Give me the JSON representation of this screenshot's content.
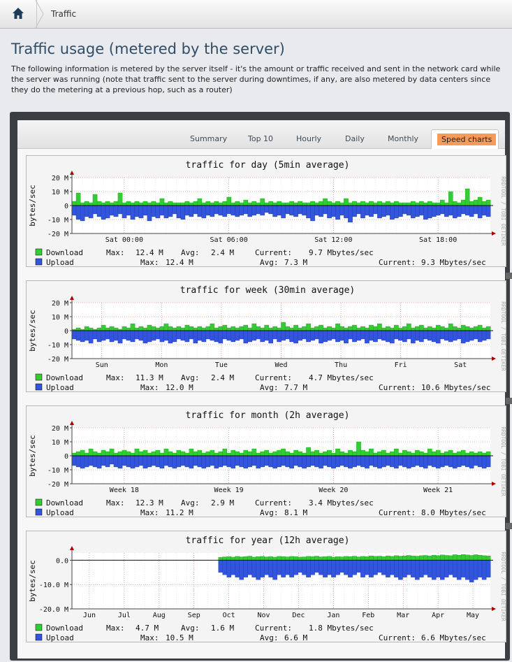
{
  "breadcrumb": {
    "home_icon": "home-icon",
    "current": "Traffic"
  },
  "page": {
    "title": "Traffic usage (metered by the server)",
    "description": "The following information is metered by the server itself - it's the amount or traffic received and sent in the network card while the server was running (note that traffic sent to the server during downtimes, if any, are also metered by data centers since they do the metering at a previous hop, such as a router)"
  },
  "tabs": [
    {
      "label": "Summary",
      "active": false
    },
    {
      "label": "Top 10",
      "active": false
    },
    {
      "label": "Hourly",
      "active": false
    },
    {
      "label": "Daily",
      "active": false
    },
    {
      "label": "Monthly",
      "active": false
    },
    {
      "label": "Speed charts",
      "active": true
    }
  ],
  "colors": {
    "download": "#33cc33",
    "upload": "#3355dd",
    "accent_tab": "#f79b5b"
  },
  "chart_data": [
    {
      "type": "area",
      "title": "traffic for day (5min average)",
      "ylabel": "bytes/sec",
      "watermark": "RRDTOOL / TOBI OETIKER",
      "yticks": [
        "20 M",
        "10 M",
        "0",
        "-10 M",
        "-20 M"
      ],
      "ylim": [
        -20,
        20
      ],
      "xticks": [
        "Sat 00:00",
        "Sat 06:00",
        "Sat 12:00",
        "Sat 18:00"
      ],
      "series": [
        {
          "name": "Download",
          "max": "12.4 M",
          "avg": "2.4 M",
          "current": "9.7 Mbytes/sec",
          "values": [
            3,
            9,
            2,
            3,
            2,
            8,
            3,
            2,
            3,
            2,
            3,
            9,
            2,
            3,
            2,
            3,
            2,
            3,
            2,
            3,
            2,
            5,
            2,
            3,
            2,
            2,
            2,
            3,
            2,
            3,
            5,
            2,
            3,
            2,
            3,
            2,
            3,
            6,
            2,
            3,
            2,
            4,
            2,
            3,
            2,
            5,
            2,
            3,
            2,
            3,
            2,
            2,
            3,
            2,
            3,
            2,
            2,
            3,
            2,
            3,
            5,
            3,
            2,
            3,
            2,
            5,
            2,
            3,
            2,
            3,
            2,
            3,
            2,
            3,
            2,
            3,
            2,
            3,
            2,
            2,
            2,
            3,
            2,
            3,
            2,
            3,
            2,
            2,
            4,
            2,
            10,
            3,
            2,
            4,
            12,
            3,
            4,
            6,
            3,
            4
          ]
        },
        {
          "name": "Upload",
          "max": "12.4 M",
          "avg": "7.3 M",
          "current": "9.3 Mbytes/sec",
          "values": [
            -7,
            -10,
            -11,
            -8,
            -9,
            -6,
            -8,
            -10,
            -9,
            -7,
            -8,
            -6,
            -9,
            -7,
            -10,
            -8,
            -9,
            -7,
            -11,
            -8,
            -9,
            -7,
            -9,
            -8,
            -6,
            -9,
            -10,
            -7,
            -8,
            -6,
            -8,
            -9,
            -7,
            -8,
            -6,
            -7,
            -8,
            -6,
            -7,
            -8,
            -7,
            -6,
            -8,
            -7,
            -6,
            -7,
            -5,
            -6,
            -8,
            -7,
            -9,
            -6,
            -7,
            -8,
            -6,
            -7,
            -9,
            -11,
            -7,
            -8,
            -6,
            -9,
            -8,
            -10,
            -7,
            -9,
            -12,
            -8,
            -6,
            -9,
            -7,
            -8,
            -6,
            -9,
            -8,
            -7,
            -10,
            -9,
            -8,
            -6,
            -7,
            -9,
            -8,
            -7,
            -10,
            -9,
            -8,
            -7,
            -6,
            -8,
            -7,
            -9,
            -8,
            -6,
            -7,
            -8,
            -6,
            -9,
            -7,
            -8
          ]
        }
      ]
    },
    {
      "type": "area",
      "title": "traffic for week (30min average)",
      "ylabel": "bytes/sec",
      "watermark": "RRDTOOL / TOBI OETIKER",
      "yticks": [
        "20 M",
        "10 M",
        "0",
        "-10 M",
        "-20 M"
      ],
      "ylim": [
        -20,
        20
      ],
      "xticks": [
        "Sun",
        "Mon",
        "Tue",
        "Wed",
        "Thu",
        "Fri",
        "Sat"
      ],
      "series": [
        {
          "name": "Download",
          "max": "11.3 M",
          "avg": "2.4 M",
          "current": "4.7 Mbytes/sec",
          "values": [
            1,
            2,
            1,
            3,
            2,
            1,
            2,
            4,
            2,
            3,
            2,
            1,
            3,
            2,
            5,
            2,
            3,
            2,
            4,
            3,
            2,
            3,
            5,
            3,
            2,
            3,
            2,
            4,
            3,
            2,
            3,
            2,
            3,
            5,
            2,
            3,
            4,
            2,
            3,
            2,
            3,
            4,
            2,
            5,
            3,
            2,
            4,
            2,
            3,
            2,
            6,
            3,
            2,
            4,
            2,
            3,
            5,
            2,
            3,
            4,
            2,
            3,
            2,
            5,
            3,
            2,
            3,
            4,
            2,
            3,
            2,
            4,
            3,
            5,
            2,
            3,
            2,
            4,
            2,
            3,
            5,
            2,
            3,
            4,
            2,
            3,
            2,
            4,
            3,
            2,
            5,
            3,
            2,
            4,
            3,
            2,
            3,
            4,
            2,
            3
          ]
        },
        {
          "name": "Upload",
          "max": "12.0 M",
          "avg": "7.7 M",
          "current": "10.6 Mbytes/sec",
          "values": [
            -6,
            -7,
            -8,
            -7,
            -9,
            -6,
            -8,
            -7,
            -6,
            -8,
            -7,
            -9,
            -6,
            -7,
            -8,
            -6,
            -7,
            -9,
            -8,
            -7,
            -6,
            -8,
            -7,
            -9,
            -8,
            -6,
            -7,
            -8,
            -6,
            -9,
            -7,
            -8,
            -6,
            -7,
            -8,
            -9,
            -6,
            -7,
            -8,
            -7,
            -6,
            -9,
            -8,
            -7,
            -6,
            -8,
            -7,
            -9,
            -6,
            -8,
            -7,
            -6,
            -8,
            -9,
            -7,
            -6,
            -8,
            -7,
            -6,
            -9,
            -8,
            -7,
            -6,
            -8,
            -7,
            -9,
            -6,
            -8,
            -7,
            -6,
            -9,
            -7,
            -8,
            -6,
            -7,
            -8,
            -9,
            -6,
            -7,
            -8,
            -6,
            -9,
            -7,
            -8,
            -6,
            -7,
            -8,
            -9,
            -6,
            -7,
            -8,
            -7,
            -6,
            -9,
            -8,
            -7,
            -6,
            -8,
            -7,
            -6
          ]
        }
      ]
    },
    {
      "type": "area",
      "title": "traffic for month (2h average)",
      "ylabel": "bytes/sec",
      "watermark": "RRDTOOL / TOBI OETIKER",
      "yticks": [
        "20 M",
        "10 M",
        "0",
        "-10 M",
        "-20 M"
      ],
      "ylim": [
        -20,
        20
      ],
      "xticks": [
        "Week 18",
        "Week 19",
        "Week 20",
        "Week 21"
      ],
      "series": [
        {
          "name": "Download",
          "max": "12.3 M",
          "avg": "2.9 M",
          "current": "3.4 Mbytes/sec",
          "values": [
            2,
            3,
            4,
            2,
            5,
            3,
            2,
            4,
            3,
            5,
            2,
            3,
            4,
            3,
            2,
            5,
            3,
            4,
            2,
            3,
            4,
            2,
            5,
            3,
            2,
            4,
            3,
            2,
            5,
            3,
            4,
            2,
            3,
            4,
            2,
            3,
            5,
            2,
            4,
            3,
            2,
            4,
            3,
            5,
            2,
            3,
            4,
            2,
            3,
            4,
            5,
            3,
            2,
            4,
            3,
            2,
            6,
            3,
            4,
            2,
            3,
            4,
            2,
            5,
            3,
            2,
            4,
            3,
            10,
            4,
            3,
            5,
            2,
            3,
            4,
            2,
            3,
            5,
            2,
            4,
            3,
            2,
            4,
            3,
            2,
            5,
            3,
            4,
            2,
            3,
            4,
            2,
            3,
            4,
            2,
            3,
            2,
            3,
            2,
            3
          ]
        },
        {
          "name": "Upload",
          "max": "11.2 M",
          "avg": "8.1 M",
          "current": "8.0 Mbytes/sec",
          "values": [
            -7,
            -8,
            -9,
            -8,
            -7,
            -8,
            -9,
            -7,
            -8,
            -6,
            -8,
            -9,
            -7,
            -8,
            -9,
            -8,
            -7,
            -9,
            -8,
            -7,
            -8,
            -9,
            -7,
            -8,
            -9,
            -8,
            -7,
            -8,
            -9,
            -7,
            -8,
            -9,
            -8,
            -7,
            -9,
            -8,
            -7,
            -8,
            -9,
            -7,
            -8,
            -9,
            -8,
            -7,
            -9,
            -8,
            -7,
            -8,
            -9,
            -8,
            -7,
            -8,
            -9,
            -7,
            -8,
            -9,
            -8,
            -7,
            -8,
            -9,
            -7,
            -8,
            -9,
            -8,
            -7,
            -8,
            -9,
            -8,
            -7,
            -8,
            -9,
            -7,
            -8,
            -9,
            -8,
            -7,
            -8,
            -9,
            -7,
            -8,
            -9,
            -8,
            -7,
            -8,
            -9,
            -7,
            -8,
            -9,
            -8,
            -7,
            -8,
            -9,
            -8,
            -7,
            -8,
            -9,
            -7,
            -8,
            -9,
            -8
          ]
        }
      ]
    },
    {
      "type": "area",
      "title": "traffic for year (12h average)",
      "ylabel": "bytes/sec",
      "watermark": "RRDTOOL / TOBI OETIKER",
      "yticks": [
        "0.0",
        "-10.0 M",
        "-20.0 M"
      ],
      "ylim": [
        -20,
        3
      ],
      "xticks": [
        "Jun",
        "Jul",
        "Aug",
        "Sep",
        "Oct",
        "Nov",
        "Dec",
        "Jan",
        "Feb",
        "Mar",
        "Apr",
        "May"
      ],
      "series": [
        {
          "name": "Download",
          "max": "4.7 M",
          "avg": "1.6 M",
          "current": "1.8 Mbytes/sec",
          "values": [
            0,
            0,
            0,
            0,
            0,
            0,
            0,
            0,
            0,
            0,
            0,
            0,
            0,
            0,
            0,
            0,
            0,
            0,
            0,
            0,
            0,
            0,
            0,
            0,
            0,
            0,
            0,
            0,
            0,
            0,
            0,
            0,
            0,
            0,
            0,
            1.2,
            1.4,
            1.5,
            1.3,
            1.6,
            1.4,
            1.5,
            1.7,
            1.3,
            1.5,
            1.6,
            1.4,
            1.5,
            1.3,
            1.6,
            1.5,
            1.4,
            1.6,
            1.5,
            1.3,
            1.4,
            1.6,
            1.5,
            1.7,
            1.4,
            1.5,
            1.6,
            1.3,
            1.5,
            1.4,
            1.6,
            1.5,
            1.7,
            1.4,
            1.6,
            1.5,
            1.8,
            1.6,
            1.7,
            1.5,
            1.8,
            1.6,
            1.9,
            1.7,
            1.8,
            2.0,
            1.8,
            1.7,
            1.9,
            2.0,
            1.8,
            2.1,
            1.9,
            2.2,
            2.0,
            1.9,
            2.3,
            2.1,
            2.4,
            2.2,
            2.0,
            2.3,
            2.1,
            1.9,
            1.8
          ]
        },
        {
          "name": "Upload",
          "max": "10.5 M",
          "avg": "6.6 M",
          "current": "6.6 Mbytes/sec",
          "values": [
            0,
            0,
            0,
            0,
            0,
            0,
            0,
            0,
            0,
            0,
            0,
            0,
            0,
            0,
            0,
            0,
            0,
            0,
            0,
            0,
            0,
            0,
            0,
            0,
            0,
            0,
            0,
            0,
            0,
            0,
            0,
            0,
            0,
            0,
            0,
            -5,
            -6,
            -7,
            -6,
            -7,
            -8,
            -7,
            -6,
            -7,
            -8,
            -7,
            -6,
            -7,
            -8,
            -6,
            -7,
            -6,
            -7,
            -6,
            -5,
            -6,
            -7,
            -6,
            -5,
            -6,
            -7,
            -6,
            -7,
            -6,
            -5,
            -6,
            -7,
            -6,
            -5,
            -7,
            -6,
            -7,
            -6,
            -5,
            -6,
            -7,
            -6,
            -7,
            -8,
            -7,
            -6,
            -7,
            -8,
            -7,
            -6,
            -7,
            -8,
            -7,
            -8,
            -7,
            -6,
            -7,
            -8,
            -7,
            -8,
            -9,
            -8,
            -7,
            -8,
            -7
          ]
        }
      ]
    }
  ]
}
